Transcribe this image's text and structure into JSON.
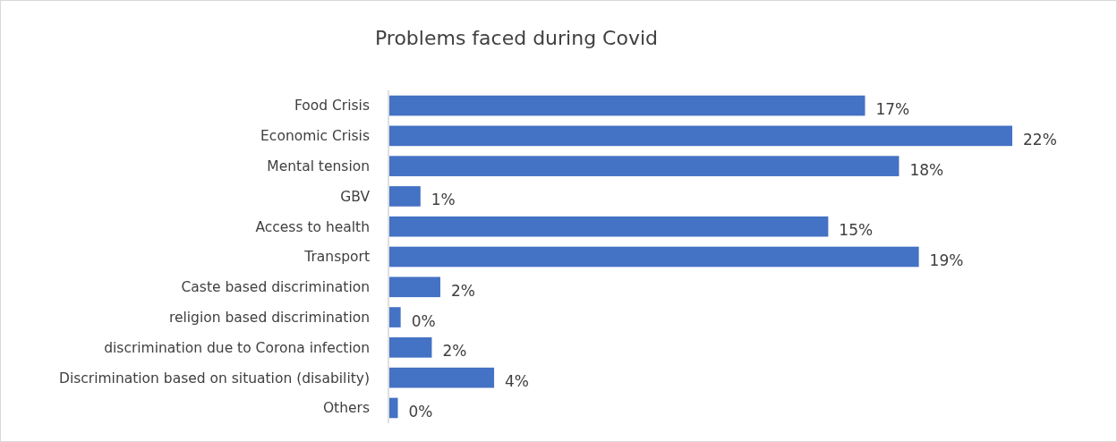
{
  "chart_data": {
    "type": "bar",
    "orientation": "horizontal",
    "title": "Problems faced during Covid",
    "categories": [
      "Food Crisis",
      "Economic Crisis",
      "Mental tension",
      "GBV",
      "Access to health",
      "Transport",
      "Caste based discrimination",
      "religion based discrimination",
      "discrimination due to Corona infection",
      "Discrimination based on situation (disability)",
      "Others"
    ],
    "values": [
      16.8,
      22,
      18,
      1.1,
      15.5,
      18.7,
      1.8,
      0.4,
      1.5,
      3.7,
      0.3
    ],
    "value_labels": [
      "17%",
      "22%",
      "18%",
      "1%",
      "15%",
      "19%",
      "2%",
      "0%",
      "2%",
      "4%",
      "0%"
    ],
    "color": "#4472c4"
  }
}
